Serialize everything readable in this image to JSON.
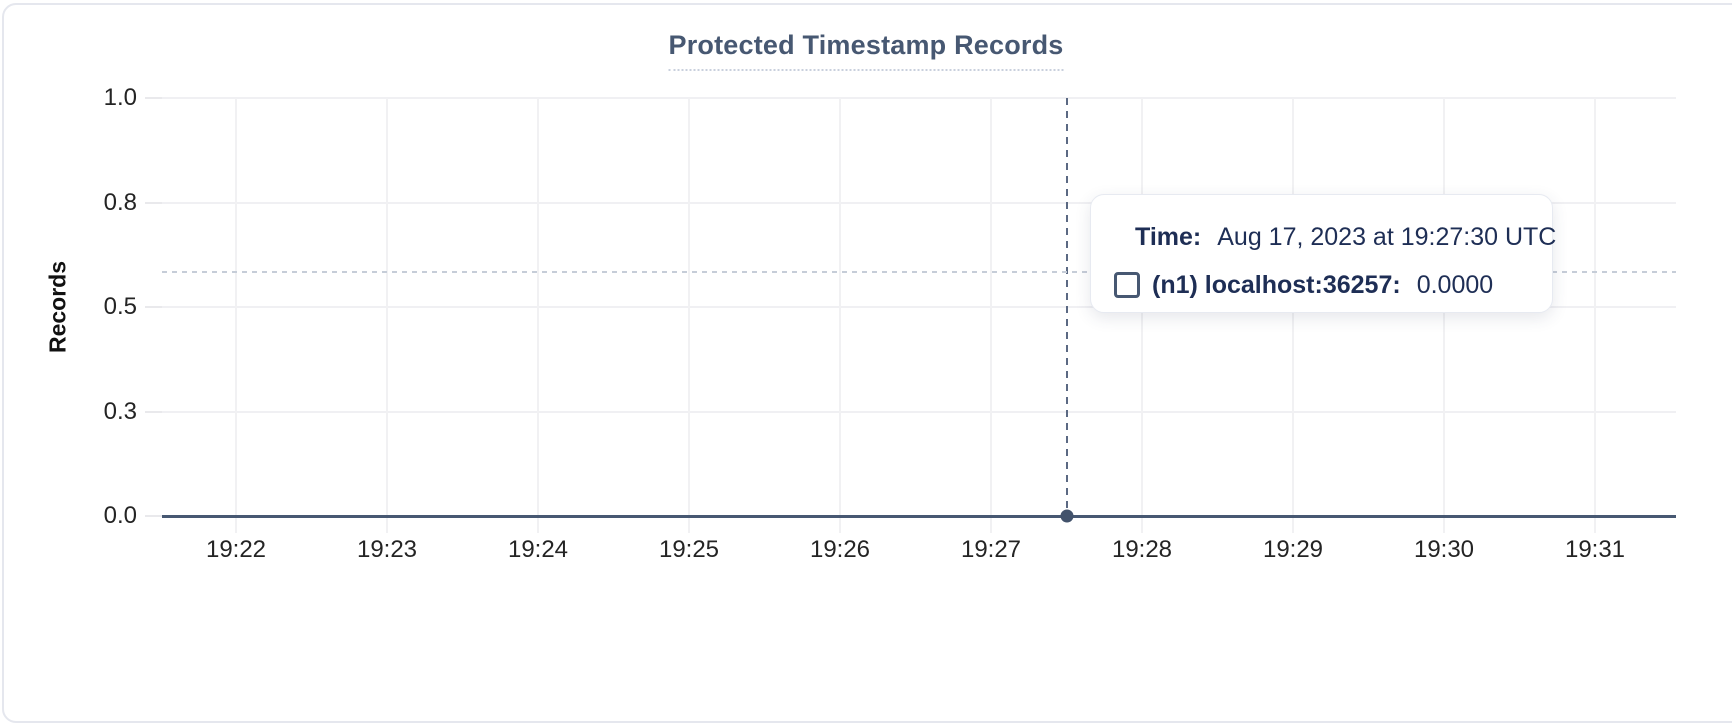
{
  "chart": {
    "title": "Protected Timestamp Records",
    "y_axis_title": "Records"
  },
  "chart_data": {
    "type": "line",
    "title": "Protected Timestamp Records",
    "xlabel": "",
    "ylabel": "Records",
    "x_ticks": [
      "19:22",
      "19:23",
      "19:24",
      "19:25",
      "19:26",
      "19:27",
      "19:28",
      "19:29",
      "19:30",
      "19:31"
    ],
    "y_ticks": [
      "1.0",
      "0.8",
      "0.5",
      "0.3",
      "0.0"
    ],
    "ylim": [
      0,
      1
    ],
    "grid": true,
    "legend_position": "none",
    "series": [
      {
        "name": "(n1) localhost:36257",
        "color": "#475872",
        "values": [
          0,
          0,
          0,
          0,
          0,
          0,
          0,
          0,
          0,
          0
        ]
      }
    ],
    "hovered_point": {
      "time": "19:27:30",
      "value": 0.0
    }
  },
  "tooltip": {
    "time_label": "Time:",
    "time_value": "Aug 17, 2023 at 19:27:30 UTC",
    "series_label": "(n1) localhost:36257:",
    "series_value": "0.0000"
  },
  "colors": {
    "title": "#475872",
    "series_line": "#475872",
    "axis_text": "#242424",
    "gridline": "#f0f0f3",
    "crosshair": "#5b6983",
    "cursor_line": "#c6cdd8",
    "tooltip_text": "#1e2e55",
    "card_border": "#e5e7ee"
  }
}
